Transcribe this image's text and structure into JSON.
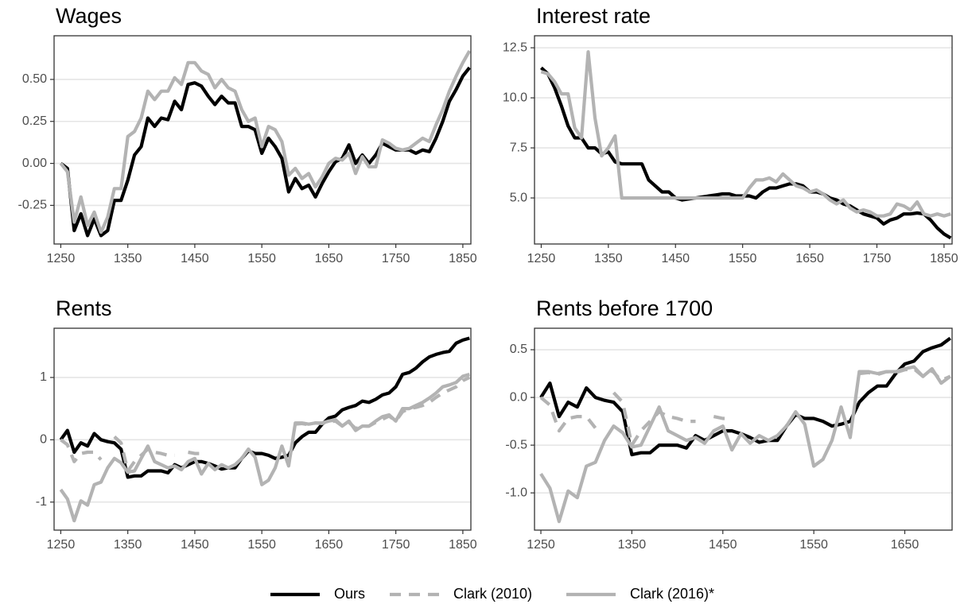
{
  "chart_data": [
    {
      "type": "line",
      "title": "Wages",
      "x": [
        1250,
        1260,
        1270,
        1280,
        1290,
        1300,
        1310,
        1320,
        1330,
        1340,
        1350,
        1360,
        1370,
        1380,
        1390,
        1400,
        1410,
        1420,
        1430,
        1440,
        1450,
        1460,
        1470,
        1480,
        1490,
        1500,
        1510,
        1520,
        1530,
        1540,
        1550,
        1560,
        1570,
        1580,
        1590,
        1600,
        1610,
        1620,
        1630,
        1640,
        1650,
        1660,
        1670,
        1680,
        1690,
        1700,
        1710,
        1720,
        1730,
        1740,
        1750,
        1760,
        1770,
        1780,
        1790,
        1800,
        1810,
        1820,
        1830,
        1840,
        1850,
        1860
      ],
      "xlim": [
        1240,
        1862
      ],
      "ylim": [
        -0.48,
        0.76
      ],
      "xticks": [
        1250,
        1350,
        1450,
        1550,
        1650,
        1750,
        1850
      ],
      "yticks": [
        {
          "value": -0.25,
          "label": "-0.25"
        },
        {
          "value": 0,
          "label": "0.00"
        },
        {
          "value": 0.25,
          "label": "0.25"
        },
        {
          "value": 0.5,
          "label": "0.50"
        }
      ],
      "grid": true,
      "series": [
        {
          "name": "Ours",
          "color": "#000000",
          "linestyle": "solid",
          "values": [
            0.0,
            -0.03,
            -0.4,
            -0.3,
            -0.43,
            -0.33,
            -0.43,
            -0.4,
            -0.22,
            -0.22,
            -0.1,
            0.05,
            0.1,
            0.27,
            0.22,
            0.27,
            0.26,
            0.37,
            0.32,
            0.47,
            0.48,
            0.46,
            0.4,
            0.35,
            0.4,
            0.36,
            0.36,
            0.22,
            0.22,
            0.2,
            0.06,
            0.15,
            0.1,
            0.03,
            -0.17,
            -0.09,
            -0.15,
            -0.13,
            -0.2,
            -0.12,
            -0.05,
            0.01,
            0.03,
            0.11,
            0.0,
            0.05,
            0.0,
            0.05,
            0.12,
            0.1,
            0.08,
            0.08,
            0.08,
            0.06,
            0.08,
            0.07,
            0.15,
            0.25,
            0.37,
            0.44,
            0.52,
            0.57
          ]
        },
        {
          "name": "Clark (2016)*",
          "color": "#b3b3b3",
          "linestyle": "solid",
          "values": [
            0.0,
            -0.05,
            -0.35,
            -0.2,
            -0.37,
            -0.29,
            -0.41,
            -0.32,
            -0.15,
            -0.15,
            0.16,
            0.19,
            0.27,
            0.43,
            0.38,
            0.43,
            0.43,
            0.51,
            0.47,
            0.6,
            0.6,
            0.55,
            0.53,
            0.45,
            0.5,
            0.45,
            0.43,
            0.32,
            0.25,
            0.27,
            0.1,
            0.22,
            0.2,
            0.13,
            -0.07,
            -0.03,
            -0.09,
            -0.06,
            -0.14,
            -0.08,
            0.0,
            0.03,
            0.02,
            0.06,
            -0.06,
            0.04,
            -0.02,
            -0.02,
            0.14,
            0.12,
            0.09,
            0.08,
            0.09,
            0.12,
            0.15,
            0.13,
            0.23,
            0.32,
            0.43,
            0.52,
            0.6,
            0.67
          ]
        }
      ]
    },
    {
      "type": "line",
      "title": "Interest rate",
      "x": [
        1250,
        1260,
        1270,
        1280,
        1290,
        1300,
        1310,
        1320,
        1330,
        1340,
        1350,
        1360,
        1370,
        1380,
        1390,
        1400,
        1410,
        1420,
        1430,
        1440,
        1450,
        1460,
        1470,
        1480,
        1490,
        1500,
        1510,
        1520,
        1530,
        1540,
        1550,
        1560,
        1570,
        1580,
        1590,
        1600,
        1610,
        1620,
        1630,
        1640,
        1650,
        1660,
        1670,
        1680,
        1690,
        1700,
        1710,
        1720,
        1730,
        1740,
        1750,
        1760,
        1770,
        1780,
        1790,
        1800,
        1810,
        1820,
        1830,
        1840,
        1850,
        1860
      ],
      "xlim": [
        1240,
        1862
      ],
      "ylim": [
        2.7,
        13.1
      ],
      "xticks": [
        1250,
        1350,
        1450,
        1550,
        1650,
        1750,
        1850
      ],
      "yticks": [
        {
          "value": 5,
          "label": "5.0"
        },
        7.5,
        {
          "value": 10,
          "label": "10.0"
        },
        12.5
      ],
      "grid": true,
      "series": [
        {
          "name": "Ours",
          "color": "#000000",
          "linestyle": "solid",
          "values": [
            11.5,
            11.2,
            10.5,
            9.6,
            8.6,
            8.0,
            8.0,
            7.5,
            7.5,
            7.2,
            7.3,
            6.8,
            6.7,
            6.7,
            6.7,
            6.7,
            5.9,
            5.6,
            5.3,
            5.3,
            5.0,
            4.9,
            4.95,
            5.0,
            5.05,
            5.1,
            5.15,
            5.2,
            5.2,
            5.1,
            5.1,
            5.1,
            5.0,
            5.3,
            5.5,
            5.5,
            5.6,
            5.7,
            5.7,
            5.6,
            5.3,
            5.3,
            5.2,
            5.0,
            4.9,
            4.7,
            4.6,
            4.4,
            4.2,
            4.1,
            4.0,
            3.7,
            3.9,
            4.0,
            4.2,
            4.2,
            4.25,
            4.2,
            3.9,
            3.5,
            3.2,
            3.0
          ]
        },
        {
          "name": "Clark (2016)*",
          "color": "#b3b3b3",
          "linestyle": "solid",
          "values": [
            11.3,
            11.2,
            10.8,
            10.2,
            10.2,
            8.5,
            8.0,
            12.3,
            9.0,
            7.1,
            7.5,
            8.1,
            5.0,
            5.0,
            5.0,
            5.0,
            5.0,
            5.0,
            5.0,
            5.0,
            5.0,
            5.0,
            5.0,
            5.0,
            5.0,
            5.0,
            5.0,
            5.0,
            5.0,
            5.0,
            5.0,
            5.5,
            5.9,
            5.9,
            6.0,
            5.8,
            6.2,
            5.9,
            5.6,
            5.5,
            5.3,
            5.4,
            5.2,
            4.9,
            4.7,
            4.9,
            4.5,
            4.3,
            4.4,
            4.3,
            4.1,
            4.1,
            4.2,
            4.7,
            4.6,
            4.4,
            4.8,
            4.2,
            4.1,
            4.2,
            4.1,
            4.2
          ]
        }
      ]
    },
    {
      "type": "line",
      "title": "Rents",
      "x": [
        1250,
        1260,
        1270,
        1280,
        1290,
        1300,
        1310,
        1320,
        1330,
        1340,
        1350,
        1360,
        1370,
        1380,
        1390,
        1400,
        1410,
        1420,
        1430,
        1440,
        1450,
        1460,
        1470,
        1480,
        1490,
        1500,
        1510,
        1520,
        1530,
        1540,
        1550,
        1560,
        1570,
        1580,
        1590,
        1600,
        1610,
        1620,
        1630,
        1640,
        1650,
        1660,
        1670,
        1680,
        1690,
        1700,
        1710,
        1720,
        1730,
        1740,
        1750,
        1760,
        1770,
        1780,
        1790,
        1800,
        1810,
        1820,
        1830,
        1840,
        1850,
        1860
      ],
      "xlim": [
        1240,
        1862
      ],
      "ylim": [
        -1.45,
        1.79
      ],
      "xticks": [
        1250,
        1350,
        1450,
        1550,
        1650,
        1750,
        1850
      ],
      "yticks": [
        -1,
        0,
        1
      ],
      "grid": true,
      "series": [
        {
          "name": "Ours",
          "color": "#000000",
          "linestyle": "solid",
          "values": [
            0.0,
            0.15,
            -0.2,
            -0.05,
            -0.1,
            0.1,
            0.0,
            -0.03,
            -0.05,
            -0.15,
            -0.6,
            -0.58,
            -0.58,
            -0.5,
            -0.5,
            -0.5,
            -0.53,
            -0.4,
            -0.45,
            -0.4,
            -0.35,
            -0.35,
            -0.38,
            -0.42,
            -0.47,
            -0.45,
            -0.45,
            -0.3,
            -0.18,
            -0.22,
            -0.22,
            -0.25,
            -0.3,
            -0.28,
            -0.25,
            -0.05,
            0.05,
            0.12,
            0.12,
            0.25,
            0.35,
            0.38,
            0.48,
            0.52,
            0.55,
            0.62,
            0.6,
            0.65,
            0.72,
            0.75,
            0.85,
            1.05,
            1.08,
            1.15,
            1.25,
            1.33,
            1.37,
            1.4,
            1.42,
            1.55,
            1.6,
            1.63
          ]
        },
        {
          "name": "Clark (2010)",
          "color": "#b3b3b3",
          "linestyle": "dashed",
          "values": [
            0.0,
            -0.08,
            -0.35,
            -0.22,
            -0.2,
            -0.2,
            -0.32,
            null,
            0.05,
            -0.05,
            -0.5,
            -0.35,
            -0.25,
            -0.15,
            -0.2,
            -0.22,
            -0.25,
            -0.25,
            null,
            -0.2,
            -0.22,
            -0.22,
            null,
            null,
            null,
            null,
            null,
            null,
            null,
            null,
            null,
            null,
            null,
            null,
            null,
            0.25,
            0.26,
            0.24,
            0.27,
            0.26,
            0.29,
            0.3,
            0.22,
            0.28,
            0.18,
            0.22,
            0.22,
            0.28,
            0.33,
            0.38,
            0.3,
            0.45,
            0.5,
            0.52,
            0.55,
            0.6,
            0.68,
            0.75,
            0.8,
            0.85,
            0.95,
            1.0
          ]
        },
        {
          "name": "Clark (2016)*",
          "color": "#b3b3b3",
          "linestyle": "solid",
          "values": [
            -0.8,
            -0.95,
            -1.3,
            -0.98,
            -1.05,
            -0.72,
            -0.68,
            -0.45,
            -0.3,
            -0.37,
            -0.52,
            -0.5,
            -0.3,
            -0.1,
            -0.35,
            -0.4,
            -0.45,
            -0.42,
            -0.48,
            -0.35,
            -0.3,
            -0.55,
            -0.38,
            -0.48,
            -0.4,
            -0.45,
            -0.4,
            -0.3,
            -0.15,
            -0.28,
            -0.72,
            -0.65,
            -0.45,
            -0.1,
            -0.42,
            0.27,
            0.27,
            0.25,
            0.27,
            0.27,
            0.3,
            0.32,
            0.22,
            0.3,
            0.15,
            0.22,
            0.22,
            0.3,
            0.37,
            0.4,
            0.3,
            0.5,
            0.5,
            0.55,
            0.6,
            0.67,
            0.75,
            0.85,
            0.88,
            0.92,
            1.02,
            1.05
          ]
        }
      ]
    },
    {
      "type": "line",
      "title": "Rents before 1700",
      "x": [
        1250,
        1260,
        1270,
        1280,
        1290,
        1300,
        1310,
        1320,
        1330,
        1340,
        1350,
        1360,
        1370,
        1380,
        1390,
        1400,
        1410,
        1420,
        1430,
        1440,
        1450,
        1460,
        1470,
        1480,
        1490,
        1500,
        1510,
        1520,
        1530,
        1540,
        1550,
        1560,
        1570,
        1580,
        1590,
        1600,
        1610,
        1620,
        1630,
        1640,
        1650,
        1660,
        1670,
        1680,
        1690,
        1700
      ],
      "xlim": [
        1243,
        1702
      ],
      "ylim": [
        -1.39,
        0.725
      ],
      "xticks": [
        1250,
        1350,
        1450,
        1550,
        1650
      ],
      "yticks": [
        {
          "value": -1,
          "label": "-1.0"
        },
        -0.5,
        {
          "value": 0,
          "label": "0.0"
        },
        0.5
      ],
      "grid": true,
      "series": [
        {
          "name": "Ours",
          "color": "#000000",
          "linestyle": "solid",
          "values": [
            0.0,
            0.15,
            -0.2,
            -0.05,
            -0.1,
            0.1,
            0.0,
            -0.03,
            -0.05,
            -0.15,
            -0.6,
            -0.58,
            -0.58,
            -0.5,
            -0.5,
            -0.5,
            -0.53,
            -0.4,
            -0.45,
            -0.4,
            -0.35,
            -0.35,
            -0.38,
            -0.42,
            -0.47,
            -0.45,
            -0.45,
            -0.3,
            -0.18,
            -0.22,
            -0.22,
            -0.25,
            -0.3,
            -0.28,
            -0.25,
            -0.05,
            0.05,
            0.12,
            0.12,
            0.25,
            0.35,
            0.38,
            0.48,
            0.52,
            0.55,
            0.62
          ]
        },
        {
          "name": "Clark (2010)",
          "color": "#b3b3b3",
          "linestyle": "dashed",
          "values": [
            0.0,
            -0.08,
            -0.35,
            -0.22,
            -0.2,
            -0.2,
            -0.32,
            null,
            0.05,
            -0.05,
            -0.5,
            -0.35,
            -0.25,
            -0.15,
            -0.2,
            -0.22,
            -0.25,
            -0.25,
            null,
            -0.2,
            -0.22,
            -0.22,
            null,
            null,
            null,
            null,
            null,
            null,
            null,
            null,
            null,
            null,
            null,
            null,
            null,
            0.25,
            0.26,
            0.24,
            0.27,
            0.26,
            0.29,
            0.3,
            0.22,
            0.28,
            0.18,
            0.22
          ]
        },
        {
          "name": "Clark (2016)*",
          "color": "#b3b3b3",
          "linestyle": "solid",
          "values": [
            -0.8,
            -0.95,
            -1.3,
            -0.98,
            -1.05,
            -0.72,
            -0.68,
            -0.45,
            -0.3,
            -0.37,
            -0.52,
            -0.5,
            -0.3,
            -0.1,
            -0.35,
            -0.4,
            -0.45,
            -0.42,
            -0.48,
            -0.35,
            -0.3,
            -0.55,
            -0.38,
            -0.48,
            -0.4,
            -0.45,
            -0.4,
            -0.3,
            -0.15,
            -0.28,
            -0.72,
            -0.65,
            -0.45,
            -0.1,
            -0.42,
            0.27,
            0.27,
            0.25,
            0.27,
            0.27,
            0.3,
            0.32,
            0.22,
            0.3,
            0.15,
            0.22
          ]
        }
      ]
    }
  ]
}
